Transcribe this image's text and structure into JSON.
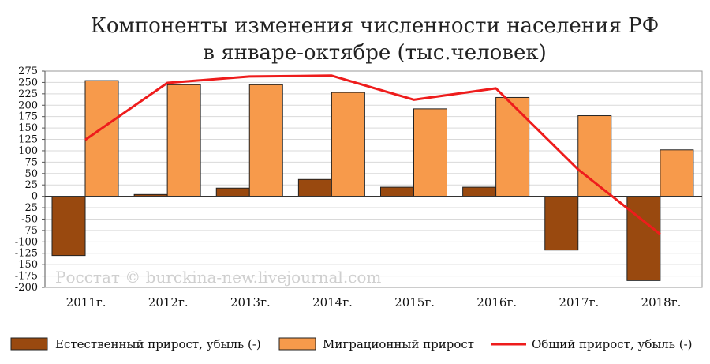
{
  "chart_data": {
    "type": "bar",
    "title": [
      "Компоненты изменения численности населения РФ",
      "в январе-октябре (тыс.человек)"
    ],
    "categories": [
      "2011г.",
      "2012г.",
      "2013г.",
      "2014г.",
      "2015г.",
      "2016г.",
      "2017г.",
      "2018г."
    ],
    "ylim": [
      -200,
      275
    ],
    "yticks": [
      275,
      250,
      225,
      200,
      175,
      150,
      125,
      100,
      75,
      50,
      25,
      0,
      -25,
      -50,
      -75,
      -100,
      -125,
      -150,
      -175,
      -200
    ],
    "grid": true,
    "series": [
      {
        "name": "Естественный прирост, убыль (-)",
        "type": "bar",
        "color": "#99490f",
        "values": [
          -130,
          4,
          18,
          37,
          20,
          20,
          -118,
          -185
        ]
      },
      {
        "name": "Миграционный прирост",
        "type": "bar",
        "color": "#f79a4b",
        "values": [
          254,
          245,
          245,
          228,
          192,
          217,
          177,
          102
        ]
      },
      {
        "name": "Общий прирост, убыль (-)",
        "type": "line",
        "color": "#ee1c1c",
        "values": [
          124,
          249,
          263,
          265,
          212,
          237,
          59,
          -83
        ]
      }
    ],
    "watermark": "Росстат © burckina-new.livejournal.com",
    "legend_position": "bottom"
  }
}
